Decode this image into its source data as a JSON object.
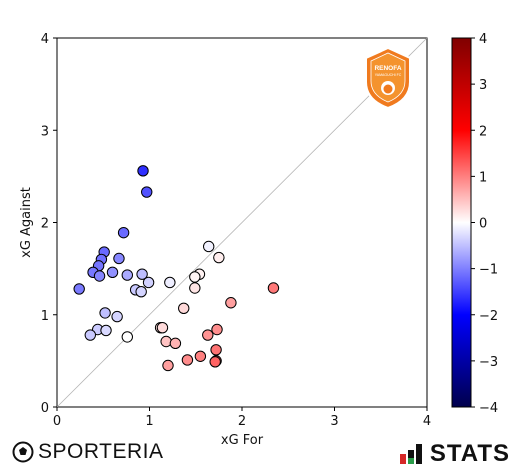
{
  "chart_data": {
    "type": "scatter",
    "xlabel": "xG For",
    "ylabel": "xG Against",
    "xlim": [
      0,
      4
    ],
    "ylim": [
      0,
      4
    ],
    "xticks": [
      "0",
      "1",
      "2",
      "3",
      "4"
    ],
    "yticks": [
      "0",
      "1",
      "2",
      "3",
      "4"
    ],
    "diagonal": true,
    "grid": false,
    "colorbar": {
      "range": [
        -4,
        4
      ],
      "ticks": [
        "4",
        "3",
        "2",
        "1",
        "0",
        "−1",
        "−2",
        "−3",
        "−4"
      ],
      "colormap": "seismic"
    },
    "points": [
      {
        "x": 0.93,
        "y": 2.56,
        "c": -1.63
      },
      {
        "x": 0.97,
        "y": 2.33,
        "c": -1.36
      },
      {
        "x": 0.72,
        "y": 1.89,
        "c": -1.17
      },
      {
        "x": 0.51,
        "y": 1.68,
        "c": -1.17
      },
      {
        "x": 0.48,
        "y": 1.6,
        "c": -1.12
      },
      {
        "x": 0.67,
        "y": 1.61,
        "c": -0.94
      },
      {
        "x": 0.45,
        "y": 1.53,
        "c": -1.08
      },
      {
        "x": 0.39,
        "y": 1.46,
        "c": -1.07
      },
      {
        "x": 0.6,
        "y": 1.46,
        "c": -0.86
      },
      {
        "x": 0.46,
        "y": 1.42,
        "c": -0.96
      },
      {
        "x": 0.24,
        "y": 1.28,
        "c": -1.04
      },
      {
        "x": 0.76,
        "y": 1.43,
        "c": -0.67
      },
      {
        "x": 0.92,
        "y": 1.44,
        "c": -0.52
      },
      {
        "x": 0.85,
        "y": 1.27,
        "c": -0.42
      },
      {
        "x": 0.91,
        "y": 1.25,
        "c": -0.34
      },
      {
        "x": 0.99,
        "y": 1.35,
        "c": -0.36
      },
      {
        "x": 1.22,
        "y": 1.35,
        "c": -0.13
      },
      {
        "x": 1.64,
        "y": 1.74,
        "c": -0.1
      },
      {
        "x": 1.75,
        "y": 1.62,
        "c": 0.13
      },
      {
        "x": 1.54,
        "y": 1.44,
        "c": 0.1
      },
      {
        "x": 1.49,
        "y": 1.41,
        "c": 0.08
      },
      {
        "x": 1.49,
        "y": 1.29,
        "c": 0.2
      },
      {
        "x": 0.52,
        "y": 1.02,
        "c": -0.5
      },
      {
        "x": 0.65,
        "y": 0.98,
        "c": -0.33
      },
      {
        "x": 0.44,
        "y": 0.84,
        "c": -0.4
      },
      {
        "x": 0.53,
        "y": 0.83,
        "c": -0.3
      },
      {
        "x": 0.36,
        "y": 0.78,
        "c": -0.42
      },
      {
        "x": 0.76,
        "y": 0.76,
        "c": 0.0
      },
      {
        "x": 1.12,
        "y": 0.86,
        "c": 0.26
      },
      {
        "x": 1.14,
        "y": 0.86,
        "c": 0.28
      },
      {
        "x": 1.37,
        "y": 1.07,
        "c": 0.3
      },
      {
        "x": 1.88,
        "y": 1.13,
        "c": 0.75
      },
      {
        "x": 2.34,
        "y": 1.29,
        "c": 1.05
      },
      {
        "x": 1.18,
        "y": 0.71,
        "c": 0.47
      },
      {
        "x": 1.28,
        "y": 0.69,
        "c": 0.59
      },
      {
        "x": 1.63,
        "y": 0.78,
        "c": 0.85
      },
      {
        "x": 1.73,
        "y": 0.84,
        "c": 0.89
      },
      {
        "x": 1.72,
        "y": 0.62,
        "c": 1.1
      },
      {
        "x": 1.55,
        "y": 0.55,
        "c": 1.0
      },
      {
        "x": 1.41,
        "y": 0.51,
        "c": 0.9
      },
      {
        "x": 1.72,
        "y": 0.5,
        "c": 1.22
      },
      {
        "x": 1.71,
        "y": 0.49,
        "c": 1.22
      },
      {
        "x": 1.2,
        "y": 0.45,
        "c": 0.75
      }
    ]
  },
  "badge": {
    "line1": "RENOFA",
    "line2": "YAMAGUCHI FC",
    "colors": {
      "outer": "#f07a1e",
      "inner": "#f4932e",
      "trim": "#ffffff"
    }
  },
  "branding": {
    "left": "SPORTERIA",
    "right": "STATS"
  }
}
